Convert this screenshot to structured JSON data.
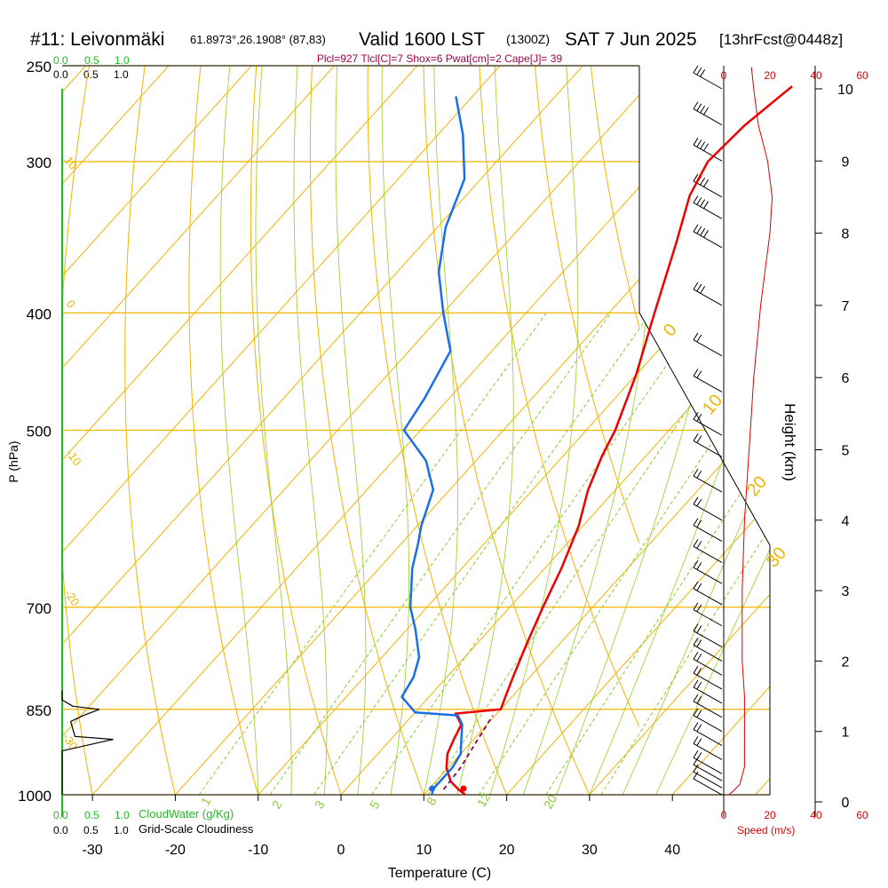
{
  "header": {
    "station": "#11: Leivonmäki",
    "coords": "61.8973°,26.1908° (87,83)",
    "valid": "Valid 1600 LST",
    "utc": "(1300Z)",
    "date": "SAT 7 Jun 2025",
    "forecast": "[13hrFcst@0448z]"
  },
  "params_line": "Plcl=927 Tlcl[C]=7 Shox=6 Pwat[cm]=2 Cape[J]= 39",
  "cloudwater": {
    "ticks": [
      "0.0",
      "0.5",
      "1.0"
    ],
    "label": "CloudWater (g/Kg)"
  },
  "cloudiness": {
    "ticks": [
      "0.0",
      "0.5",
      "1.0"
    ],
    "label": "Grid-Scale Cloudiness"
  },
  "speed_axis": {
    "ticks": [
      "0",
      "20",
      "40",
      "60"
    ],
    "label": "Speed (m/s)"
  },
  "colors": {
    "temperature": "#ee0000",
    "dewpoint": "#1a6ee8",
    "parcel": "#800060",
    "isobar": "#f0b400",
    "mixing_ratio": "#88cc33",
    "moist_adiabat": "#99cc22",
    "cloud": "#22bb22",
    "speed": "#dd0000",
    "title_params": "#a0004f"
  },
  "chart_data": {
    "type": "line",
    "title": "#11: Leivonmäki 61.8973°,26.1908° (87,83) Valid 1600 LST (1300Z) SAT 7 Jun 2025 [13hrFcst@0448z]",
    "xlabel": "Temperature (C)",
    "ylabel": "P (hPa)",
    "y2label": "Height (km)",
    "x_ticks": [
      -30,
      -20,
      -10,
      0,
      10,
      20,
      30,
      40
    ],
    "pressure_ticks": [
      250,
      300,
      400,
      500,
      700,
      850,
      1000
    ],
    "height_ticks_km": [
      0,
      1,
      2,
      3,
      4,
      5,
      6,
      7,
      8,
      9,
      10
    ],
    "ylim_hpa": [
      1000,
      250
    ],
    "xlim_c": [
      -34,
      36
    ],
    "scale": "log-pressure skew-T",
    "mixing_ratio_labels": [
      "1",
      "2",
      "3",
      "5",
      "8",
      "12",
      "20"
    ],
    "isotherm_labels": [
      "-10",
      "0",
      "10",
      "20",
      "30"
    ],
    "isotherm_label_values": [
      -10,
      0,
      10,
      20,
      30
    ],
    "dryadiabat_labels": [
      "10",
      "0",
      "-10",
      "-20",
      "-30"
    ],
    "series": [
      {
        "name": "Temperature",
        "points": [
          [
            1000,
            15.0
          ],
          [
            990,
            13.6
          ],
          [
            975,
            11.8
          ],
          [
            950,
            9.8
          ],
          [
            925,
            8.4
          ],
          [
            900,
            7.6
          ],
          [
            875,
            6.9
          ],
          [
            857,
            5.0
          ],
          [
            850,
            10.0
          ],
          [
            825,
            9.0
          ],
          [
            800,
            8.0
          ],
          [
            750,
            6.0
          ],
          [
            700,
            4.0
          ],
          [
            650,
            2.0
          ],
          [
            600,
            -0.5
          ],
          [
            560,
            -3.3
          ],
          [
            525,
            -5.3
          ],
          [
            500,
            -6.5
          ],
          [
            450,
            -10.0
          ],
          [
            400,
            -14.5
          ],
          [
            350,
            -19.5
          ],
          [
            320,
            -23.0
          ],
          [
            300,
            -24.5
          ],
          [
            280,
            -24.0
          ],
          [
            260,
            -22.5
          ]
        ]
      },
      {
        "name": "Dewpoint",
        "points": [
          [
            1000,
            11.0
          ],
          [
            990,
            10.5
          ],
          [
            975,
            10.5
          ],
          [
            950,
            10.5
          ],
          [
            925,
            10.0
          ],
          [
            900,
            8.5
          ],
          [
            875,
            7.0
          ],
          [
            860,
            5.5
          ],
          [
            855,
            0.0
          ],
          [
            830,
            -3.3
          ],
          [
            800,
            -4.0
          ],
          [
            770,
            -5.5
          ],
          [
            730,
            -9.0
          ],
          [
            700,
            -12.0
          ],
          [
            650,
            -16.0
          ],
          [
            620,
            -18.0
          ],
          [
            600,
            -19.5
          ],
          [
            560,
            -22.0
          ],
          [
            530,
            -26.0
          ],
          [
            500,
            -32.0
          ],
          [
            470,
            -33.0
          ],
          [
            430,
            -35.0
          ],
          [
            400,
            -40.0
          ],
          [
            370,
            -45.0
          ],
          [
            340,
            -49.0
          ],
          [
            310,
            -52.0
          ],
          [
            285,
            -57.0
          ],
          [
            265,
            -62.0
          ]
        ]
      },
      {
        "name": "Parcel",
        "points": [
          [
            990,
            11.8
          ],
          [
            950,
            11.5
          ],
          [
            925,
            11.0
          ],
          [
            900,
            10.5
          ],
          [
            860,
            9.7
          ]
        ]
      }
    ],
    "surface_markers": [
      {
        "name": "Temperature",
        "pressure": 1000,
        "value": 15.0
      },
      {
        "name": "Dewpoint",
        "pressure": 1000,
        "value": 11.0
      }
    ],
    "wind_speed_profile": [
      [
        0.1,
        2
      ],
      [
        0.15,
        4
      ],
      [
        0.25,
        7
      ],
      [
        0.5,
        9
      ],
      [
        1.0,
        9
      ],
      [
        1.5,
        9
      ],
      [
        2.0,
        8
      ],
      [
        3.0,
        8
      ],
      [
        4.0,
        9
      ],
      [
        5.0,
        11
      ],
      [
        6.0,
        13
      ],
      [
        7.0,
        16
      ],
      [
        8.0,
        20
      ],
      [
        8.5,
        21
      ],
      [
        9.0,
        19
      ],
      [
        9.5,
        15
      ],
      [
        10.0,
        13
      ],
      [
        10.3,
        12
      ]
    ],
    "wind_barbs_km": [
      [
        10.0,
        15
      ],
      [
        9.5,
        20
      ],
      [
        9.0,
        20
      ],
      [
        8.5,
        20
      ],
      [
        8.2,
        20
      ],
      [
        7.8,
        20
      ],
      [
        7.0,
        15
      ],
      [
        6.3,
        10
      ],
      [
        5.8,
        10
      ],
      [
        5.2,
        8
      ],
      [
        4.9,
        8
      ],
      [
        4.4,
        8
      ],
      [
        4.0,
        8
      ],
      [
        3.7,
        8
      ],
      [
        3.4,
        8
      ],
      [
        3.1,
        8
      ],
      [
        2.8,
        8
      ],
      [
        2.5,
        8
      ],
      [
        2.2,
        8
      ],
      [
        2.0,
        8
      ],
      [
        1.8,
        8
      ],
      [
        1.6,
        8
      ],
      [
        1.4,
        8
      ],
      [
        1.2,
        8
      ],
      [
        1.0,
        8
      ],
      [
        0.8,
        8
      ],
      [
        0.6,
        8
      ],
      [
        0.4,
        8
      ],
      [
        0.3,
        6
      ],
      [
        0.2,
        5
      ],
      [
        0.1,
        4
      ]
    ],
    "cloudiness_profile": [
      [
        1000,
        0.0
      ],
      [
        920,
        0.0
      ],
      [
        900,
        0.48
      ],
      [
        895,
        0.12
      ],
      [
        870,
        0.08
      ],
      [
        860,
        0.2
      ],
      [
        850,
        0.35
      ],
      [
        845,
        0.1
      ],
      [
        835,
        0.0
      ],
      [
        820,
        0.0
      ]
    ]
  }
}
